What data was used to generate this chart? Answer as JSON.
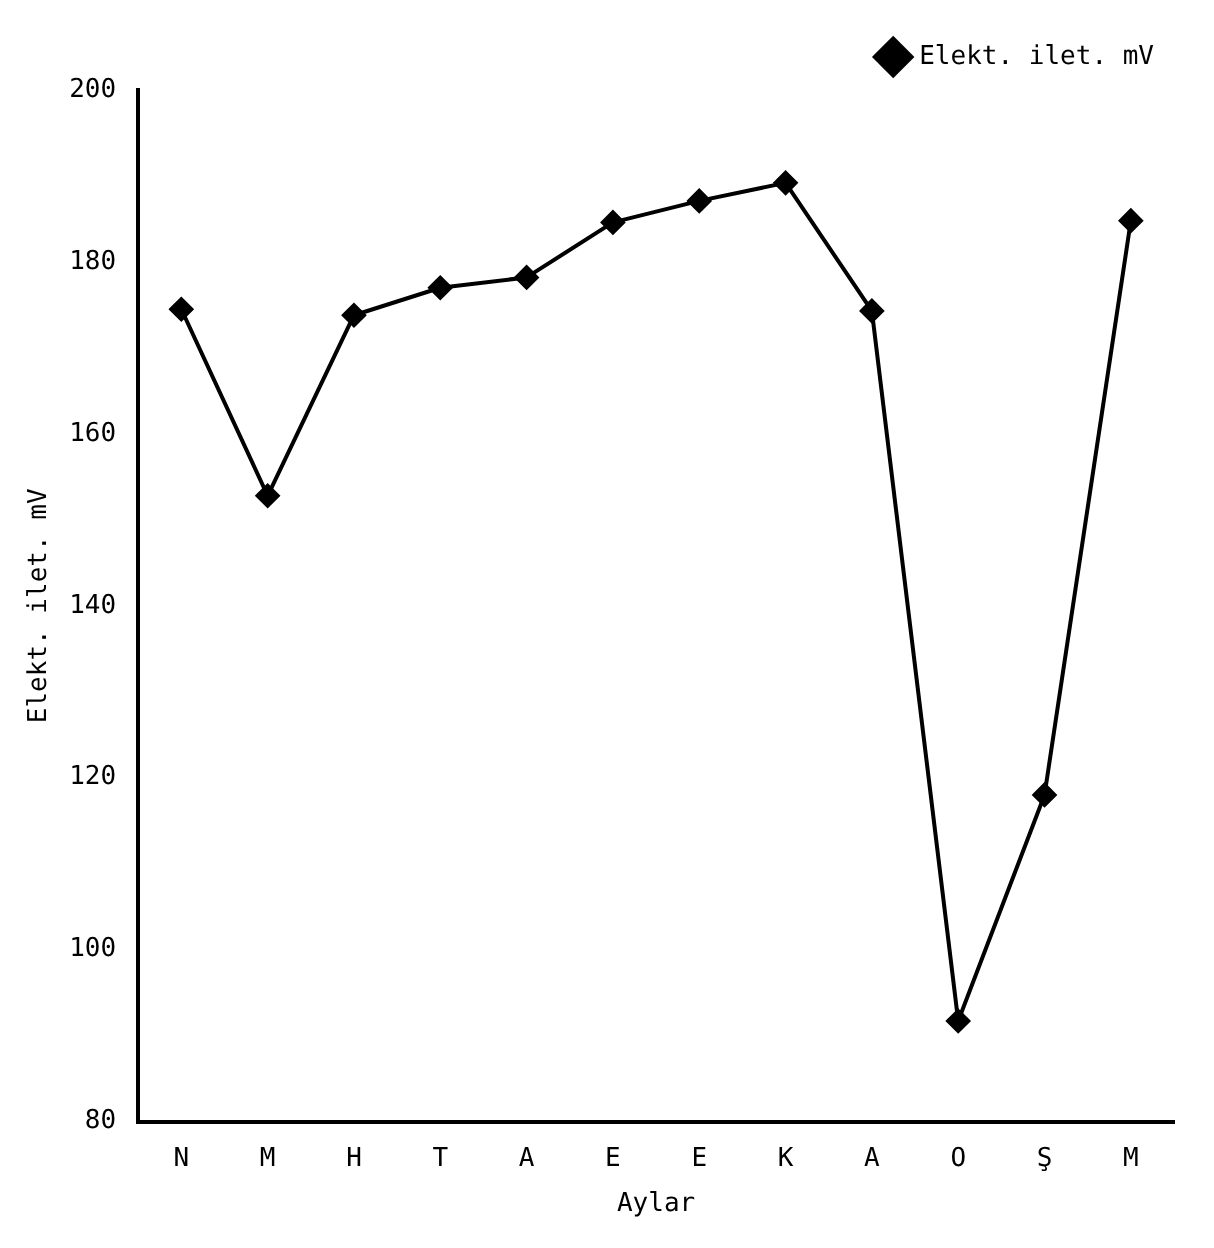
{
  "chart_data": {
    "type": "line",
    "xlabel": "Aylar",
    "ylabel": "Elekt. ilet. mV",
    "categories": [
      "N",
      "M",
      "H",
      "T",
      "A",
      "E",
      "E",
      "K",
      "A",
      "O",
      "Ş",
      "M"
    ],
    "series": [
      {
        "name": "Elekt. ilet. mV",
        "color": "#000000",
        "values": [
          174.5,
          152.8,
          173.8,
          177.0,
          178.2,
          184.6,
          187.1,
          189.2,
          174.3,
          91.7,
          118.0,
          184.8
        ]
      }
    ],
    "ylim": [
      80,
      200
    ],
    "yticks": [
      80,
      100,
      120,
      140,
      160,
      180,
      200
    ],
    "grid": false,
    "legend": "top right",
    "marker": "diamond",
    "line_style": "solid"
  }
}
